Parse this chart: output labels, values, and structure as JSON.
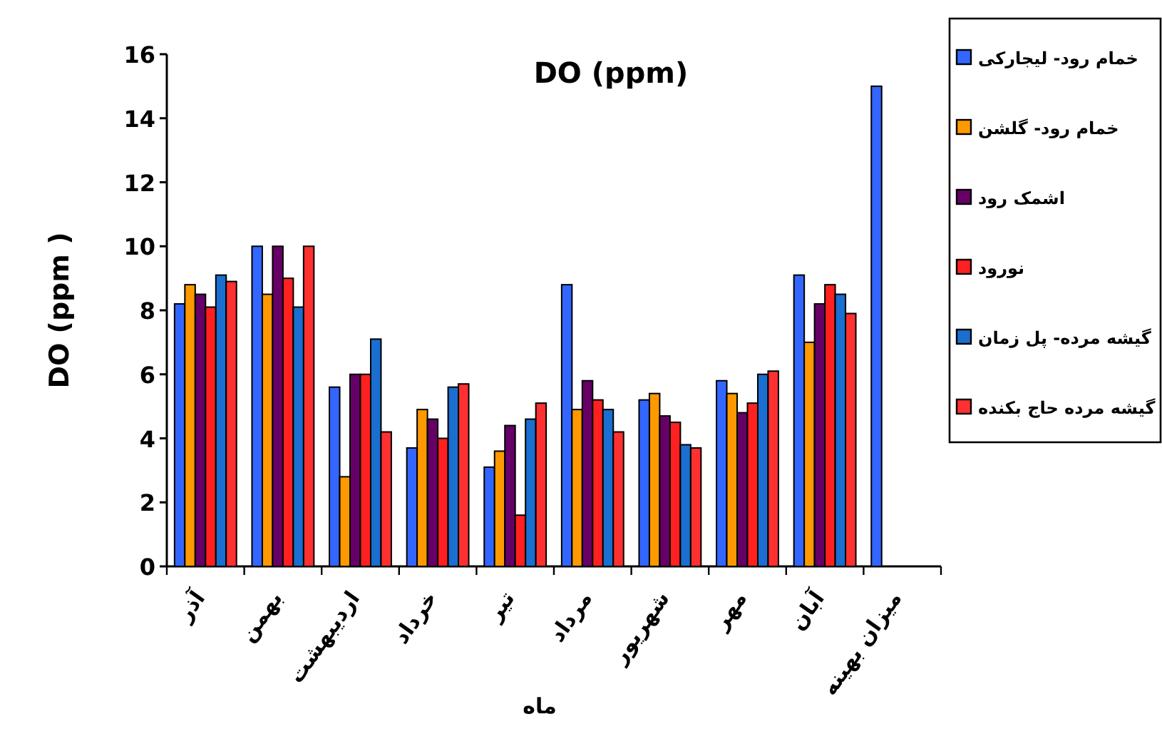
{
  "chart_data": {
    "type": "bar",
    "title": "DO (ppm)",
    "xlabel": "ماه",
    "ylabel": "DO (ppm )",
    "categories": [
      "آذر",
      "بهمن",
      "اردیبهشت",
      "خرداد",
      "تیر",
      "مرداد",
      "شهریور",
      "مهر",
      "آبان",
      "میزان بهینه"
    ],
    "series": [
      {
        "name": "خمام رود- لیجارکی",
        "color": "#3366ff",
        "values": [
          8.2,
          10,
          5.6,
          3.7,
          3.1,
          8.8,
          5.2,
          5.8,
          9.1,
          15
        ]
      },
      {
        "name": "خمام رود- گلشن",
        "color": "#ff9900",
        "values": [
          8.8,
          8.5,
          2.8,
          4.9,
          3.6,
          4.9,
          5.4,
          5.4,
          7.0,
          null
        ]
      },
      {
        "name": "اشمک رود",
        "color": "#660066",
        "values": [
          8.5,
          10,
          6.0,
          4.6,
          4.4,
          5.8,
          4.7,
          4.8,
          8.2,
          null
        ]
      },
      {
        "name": "نورود",
        "color": "#ff2020",
        "values": [
          8.1,
          9.0,
          6.0,
          4.0,
          1.6,
          5.2,
          4.5,
          5.1,
          8.8,
          null
        ]
      },
      {
        "name": "گیشه مرده- پل زمان",
        "color": "#1a6fd0",
        "values": [
          9.1,
          8.1,
          7.1,
          5.6,
          4.6,
          4.9,
          3.8,
          6.0,
          8.5,
          null
        ]
      },
      {
        "name": "گیشه مرده حاج بکنده",
        "color": "#ff3030",
        "values": [
          8.9,
          10,
          4.2,
          5.7,
          5.1,
          4.2,
          3.7,
          6.1,
          7.9,
          null
        ]
      }
    ],
    "ylim": [
      0,
      16
    ],
    "yticks": [
      0,
      2,
      4,
      6,
      8,
      10,
      12,
      14,
      16
    ],
    "grid": false,
    "legend": "right"
  }
}
